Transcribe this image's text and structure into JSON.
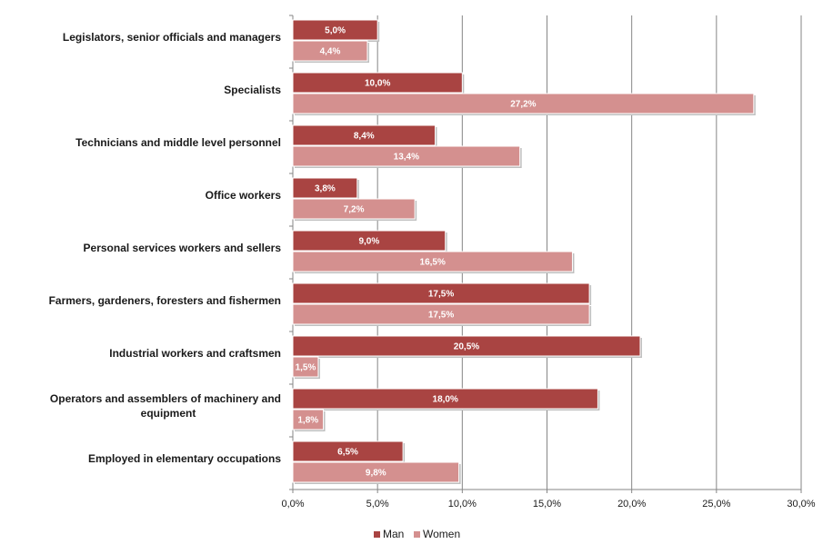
{
  "chart_data": {
    "type": "bar",
    "orientation": "horizontal",
    "categories": [
      [
        "Legislators, senior officials  and managers"
      ],
      [
        "Specialists"
      ],
      [
        "Technicians and middle level personnel"
      ],
      [
        "Office workers"
      ],
      [
        "Personal services workers and sellers"
      ],
      [
        "Farmers, gardeners, foresters and fishermen"
      ],
      [
        "Industrial workers and craftsmen"
      ],
      [
        "Operators and assemblers of machinery  and",
        "equipment"
      ],
      [
        "Employed in elementary occupations"
      ]
    ],
    "series": [
      {
        "name": "Man",
        "color": "#a94442",
        "values": [
          5.0,
          10.0,
          8.4,
          3.8,
          9.0,
          17.5,
          20.5,
          18.0,
          6.5
        ],
        "labels": [
          "5,0%",
          "10,0%",
          "8,4%",
          "3,8%",
          "9,0%",
          "17,5%",
          "20,5%",
          "18,0%",
          "6,5%"
        ]
      },
      {
        "name": "Women",
        "color": "#d4908f",
        "values": [
          4.4,
          27.2,
          13.4,
          7.2,
          16.5,
          17.5,
          1.5,
          1.8,
          9.8
        ],
        "labels": [
          "4,4%",
          "27,2%",
          "13,4%",
          "7,2%",
          "16,5%",
          "17,5%",
          "1,5%",
          "1,8%",
          "9,8%"
        ]
      }
    ],
    "xlim": [
      0,
      30
    ],
    "xticks": [
      0,
      5,
      10,
      15,
      20,
      25,
      30
    ],
    "xtick_labels": [
      "0,0%",
      "5,0%",
      "10,0%",
      "15,0%",
      "20,0%",
      "25,0%",
      "30,0%"
    ],
    "grid": true,
    "legend": "bottom-center"
  }
}
